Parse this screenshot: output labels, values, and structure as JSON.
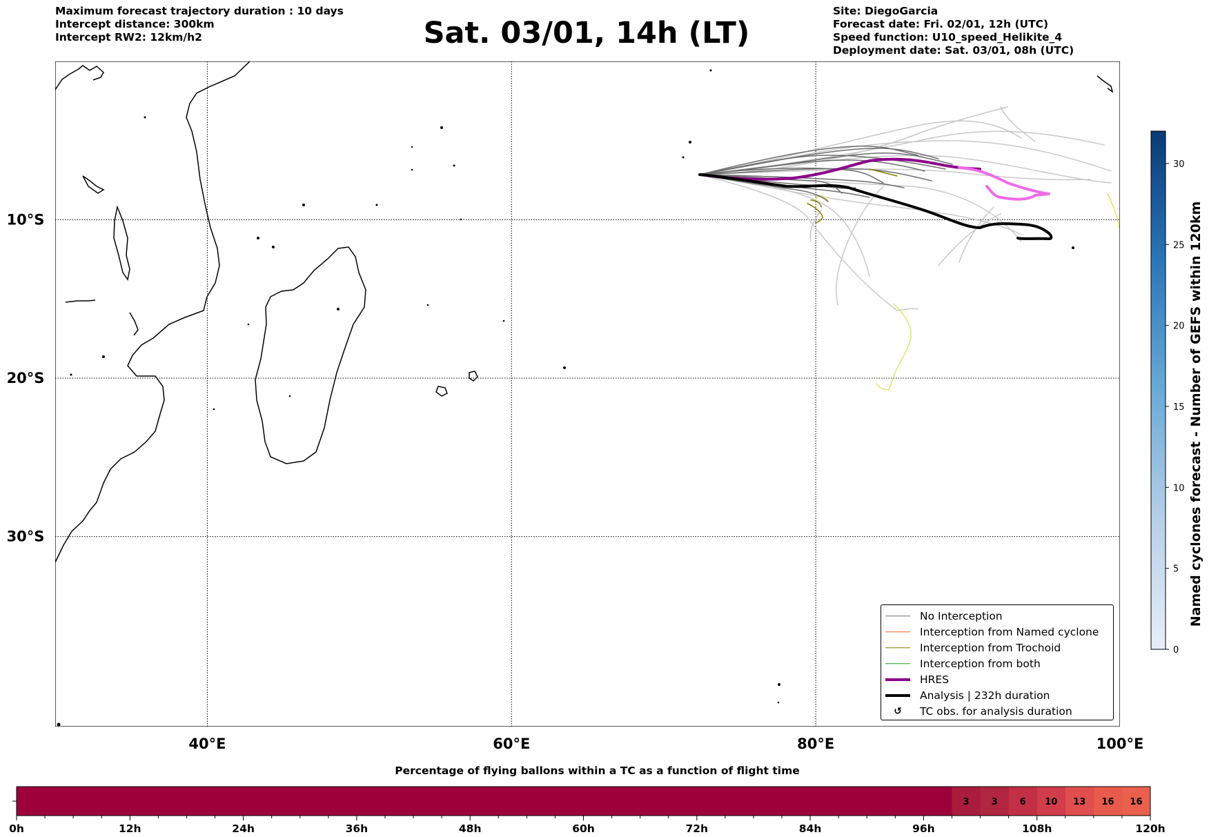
{
  "header": {
    "left_lines": [
      "Maximum forecast trajectory duration : 10 days",
      "Intercept distance: 300km",
      "Intercept RW2: 12km/h2"
    ],
    "title": "Sat. 03/01, 14h (LT)",
    "right_lines": [
      "Site: DiegoGarcia",
      "Forecast date: Fri. 02/01, 12h (UTC)",
      "Speed function: U10_speed_Helikite_4",
      "Deployment date: Sat. 03/01, 08h (UTC)"
    ]
  },
  "map": {
    "lon_range": [
      30,
      100
    ],
    "lat_range": [
      -42,
      0
    ],
    "x_ticks": [
      {
        "lon": 40,
        "label": "40°E"
      },
      {
        "lon": 60,
        "label": "60°E"
      },
      {
        "lon": 80,
        "label": "80°E"
      },
      {
        "lon": 100,
        "label": "100°E"
      }
    ],
    "y_ticks": [
      {
        "lat": -10,
        "label": "10°S"
      },
      {
        "lat": -20,
        "label": "20°S"
      },
      {
        "lat": -30,
        "label": "30°S"
      }
    ],
    "colors": {
      "no_interception": "#6e6e6e",
      "no_interception_light": "#c8c8c8",
      "named_cyclone": "#ff5a1f",
      "trochoid": "#808000",
      "trochoid_light": "#e6e070",
      "both": "#1a9e1a",
      "hres": "#8b008b",
      "hres_light": "#ee6be8",
      "analysis": "#000000"
    }
  },
  "legend": {
    "items": [
      {
        "label": "No Interception",
        "color": "#6e6e6e",
        "style": "thin"
      },
      {
        "label": "Interception from Named cyclone",
        "color": "#ff5a1f",
        "style": "thin"
      },
      {
        "label": "Interception from Trochoid",
        "color": "#808000",
        "style": "thin"
      },
      {
        "label": "Interception from both",
        "color": "#1a9e1a",
        "style": "thin"
      },
      {
        "label": "HRES",
        "color": "#8b008b",
        "style": "thick"
      },
      {
        "label": "Analysis | 232h duration",
        "color": "#000000",
        "style": "thick"
      },
      {
        "label": "TC obs. for analysis duration",
        "color": "#000000",
        "style": "marker",
        "marker": "↺"
      }
    ]
  },
  "colorbar": {
    "label": "Named cyclones forecast - Number of GEFS within 120km",
    "range": [
      0,
      32
    ],
    "ticks": [
      0,
      5,
      10,
      15,
      20,
      25,
      30
    ]
  },
  "time_bar": {
    "title": "Percentage of flying ballons within a TC as a function of flight time",
    "hours_max": 120,
    "tick_labels": [
      "0h",
      "12h",
      "24h",
      "36h",
      "48h",
      "60h",
      "72h",
      "84h",
      "96h",
      "108h",
      "120h"
    ],
    "base_color": "#9e003a",
    "segments": [
      {
        "start_h": 99,
        "end_h": 102,
        "value": 3,
        "color": "#a91c3d"
      },
      {
        "start_h": 102,
        "end_h": 105,
        "value": 3,
        "color": "#b02540"
      },
      {
        "start_h": 105,
        "end_h": 108,
        "value": 6,
        "color": "#c33045"
      },
      {
        "start_h": 108,
        "end_h": 111,
        "value": 10,
        "color": "#d23d4b"
      },
      {
        "start_h": 111,
        "end_h": 114,
        "value": 13,
        "color": "#e04e4e"
      },
      {
        "start_h": 114,
        "end_h": 117,
        "value": 16,
        "color": "#e85b4c"
      },
      {
        "start_h": 117,
        "end_h": 120,
        "value": 16,
        "color": "#ea604d"
      }
    ]
  }
}
